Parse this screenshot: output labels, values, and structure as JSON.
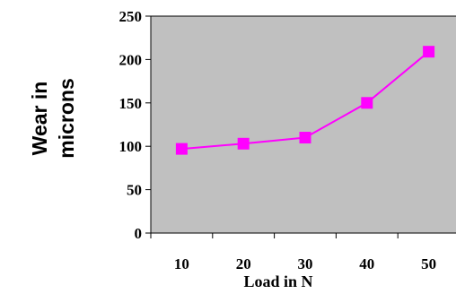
{
  "chart_data": {
    "type": "line",
    "categories": [
      "10",
      "20",
      "30",
      "40",
      "50"
    ],
    "series": [
      {
        "values": [
          97,
          103,
          110,
          150,
          209
        ],
        "color": "#ff00ff",
        "marker": "square"
      }
    ],
    "ylim": [
      0,
      250
    ],
    "yticks": [
      0,
      50,
      100,
      150,
      200,
      250
    ],
    "xlabel": "Load in N",
    "ylabel_lines": [
      "Wear in",
      "microns"
    ],
    "plot_background": "#c0c0c0",
    "grid": false,
    "legend": "none"
  }
}
